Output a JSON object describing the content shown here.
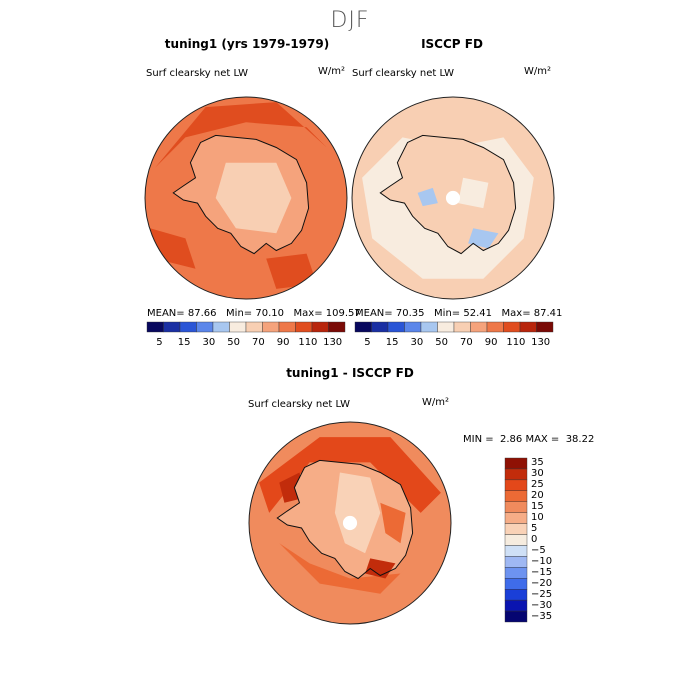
{
  "figure": {
    "suptitle": "DJF"
  },
  "panels": [
    {
      "id": "model",
      "title": "tuning1 (yrs 1979-1979)",
      "variable": "Surf clearsky net LW",
      "units": "W/m²",
      "stats": {
        "mean_label": "MEAN=",
        "mean": "87.66",
        "min_label": "Min=",
        "min": "70.10",
        "max_label": "Max=",
        "max": "109.57"
      }
    },
    {
      "id": "obs",
      "title": "ISCCP FD",
      "variable": "Surf clearsky net LW",
      "units": "W/m²",
      "stats": {
        "mean_label": "MEAN=",
        "mean": "70.35",
        "min_label": "Min=",
        "min": "52.41",
        "max_label": "Max=",
        "max": "87.41"
      }
    },
    {
      "id": "diff",
      "title": "tuning1 - ISCCP FD",
      "variable": "Surf clearsky net LW",
      "units": "W/m²",
      "stats": {
        "min_label": "MIN =",
        "min": "2.86",
        "max_label": "MAX =",
        "max": "38.22"
      }
    }
  ],
  "colors": {
    "abs_scale": [
      "#08085e",
      "#1a2fa3",
      "#2a55d6",
      "#5b86ea",
      "#a8c7f0",
      "#f8ecdf",
      "#f8cfb3",
      "#f5a37c",
      "#ee7849",
      "#e04d1f",
      "#b8250c",
      "#7a0a06"
    ],
    "diff_scale": [
      "#050571",
      "#0a14b0",
      "#1a3fd8",
      "#3f6cea",
      "#6d93f0",
      "#9fb8f3",
      "#cfe0f6",
      "#f6ecdf",
      "#f9d2b7",
      "#f6ad87",
      "#f08b5d",
      "#ec6a35",
      "#e3481a",
      "#c22c0b",
      "#8f1104"
    ]
  },
  "chart_data": [
    {
      "type": "heatmap",
      "projection": "south-polar-stereographic",
      "title": "tuning1 (yrs 1979-1979)",
      "variable": "Surf clearsky net LW",
      "units": "W/m²",
      "mean": 87.66,
      "min": 70.1,
      "max": 109.57,
      "colorbar_levels": [
        5,
        15,
        30,
        50,
        70,
        90,
        110,
        130
      ],
      "colorbar_tick_labels": [
        "5",
        "15",
        "30",
        "50",
        "70",
        "90",
        "110",
        "130"
      ]
    },
    {
      "type": "heatmap",
      "projection": "south-polar-stereographic",
      "title": "ISCCP FD",
      "variable": "Surf clearsky net LW",
      "units": "W/m²",
      "mean": 70.35,
      "min": 52.41,
      "max": 87.41,
      "colorbar_levels": [
        5,
        15,
        30,
        50,
        70,
        90,
        110,
        130
      ],
      "colorbar_tick_labels": [
        "5",
        "15",
        "30",
        "50",
        "70",
        "90",
        "110",
        "130"
      ]
    },
    {
      "type": "heatmap",
      "projection": "south-polar-stereographic",
      "title": "tuning1 - ISCCP FD",
      "variable": "Surf clearsky net LW",
      "units": "W/m²",
      "min": 2.86,
      "max": 38.22,
      "colorbar_levels": [
        35,
        30,
        25,
        20,
        15,
        10,
        5,
        0,
        -5,
        -10,
        -15,
        -20,
        -25,
        -30,
        -35
      ],
      "colorbar_tick_labels": [
        "35",
        "30",
        "25",
        "20",
        "15",
        "10",
        "5",
        "0",
        "−5",
        "−10",
        "−15",
        "−20",
        "−25",
        "−30",
        "−35"
      ]
    }
  ]
}
